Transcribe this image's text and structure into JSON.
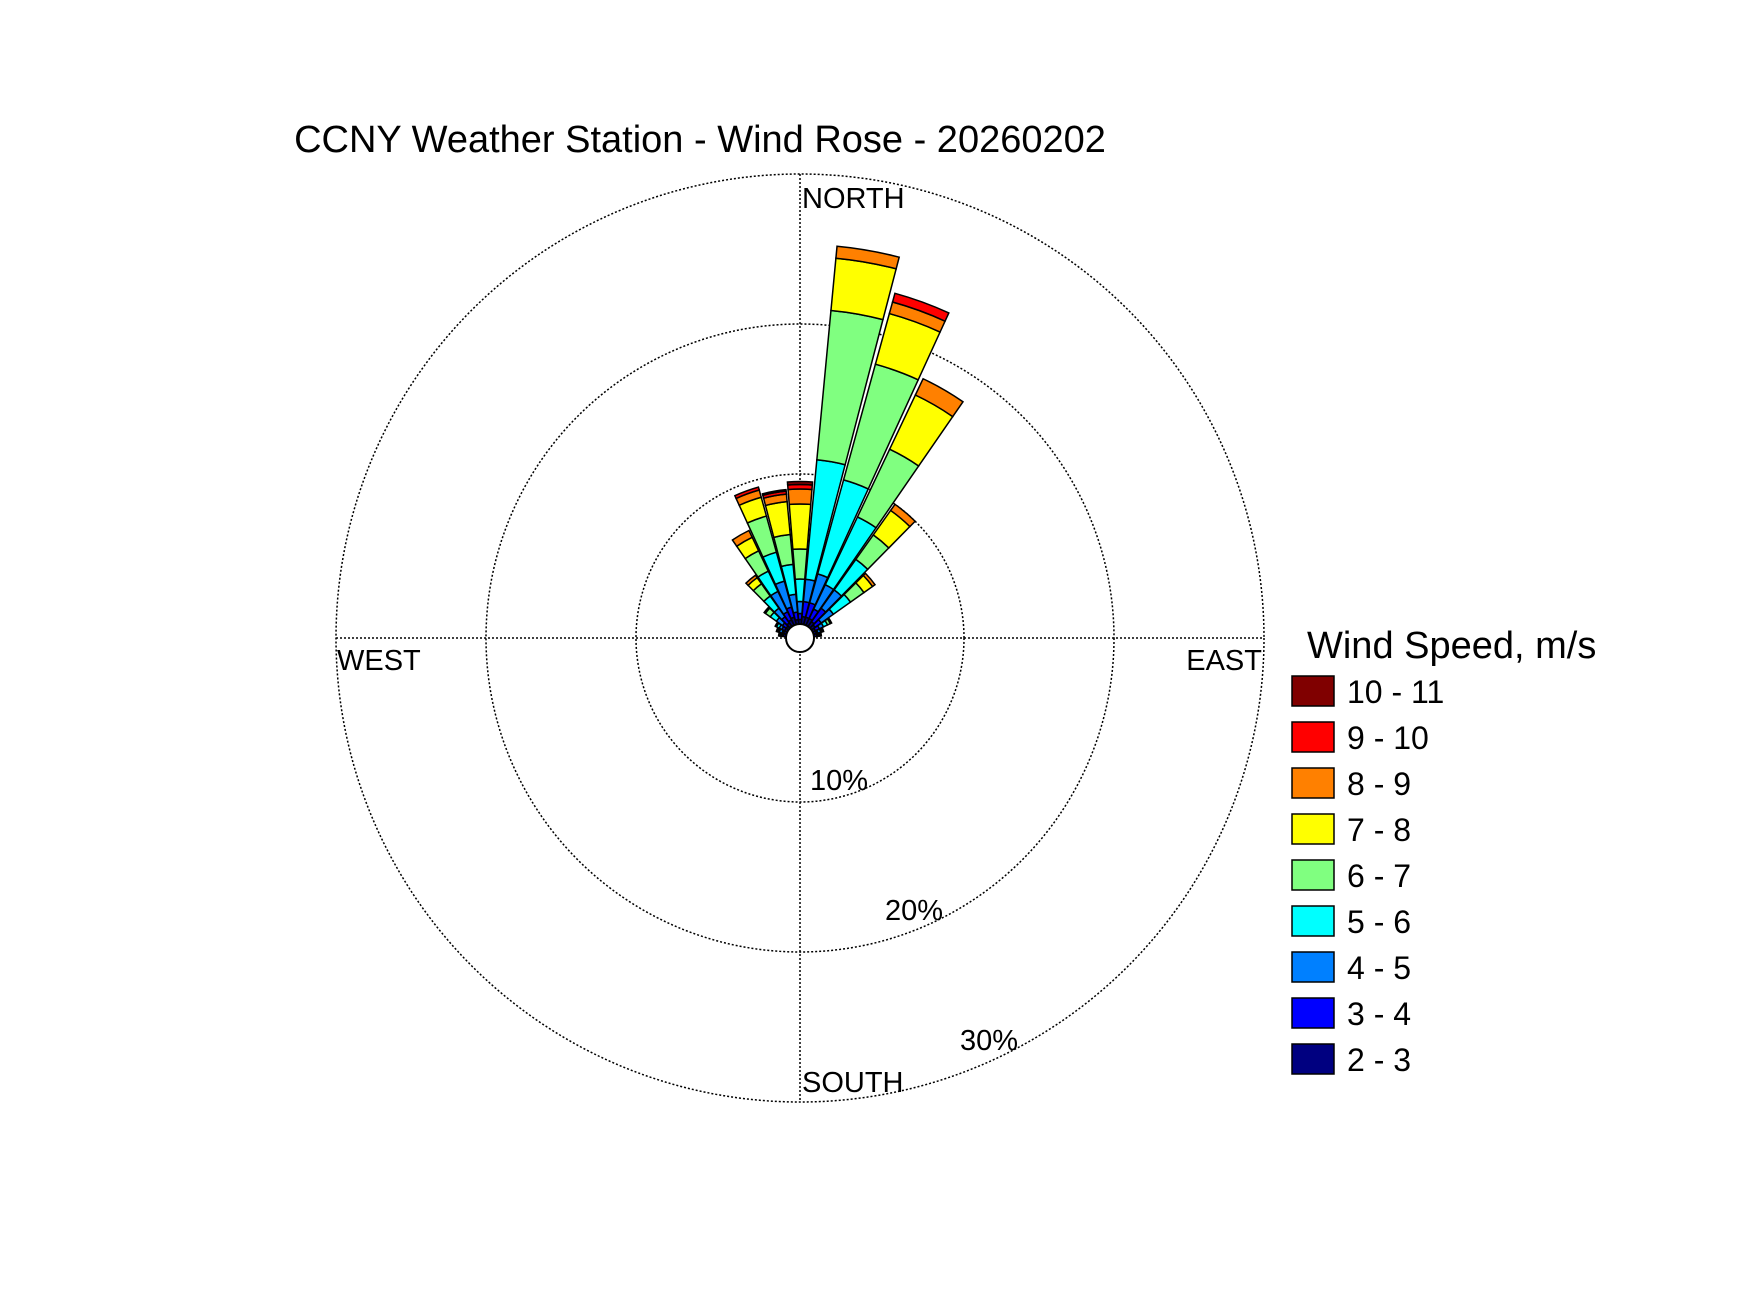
{
  "chart_data": {
    "type": "wind-rose",
    "title": "CCNY Weather Station - Wind Rose - 20260202",
    "directions": {
      "north": "NORTH",
      "east": "EAST",
      "south": "SOUTH",
      "west": "WEST"
    },
    "rings": [
      {
        "value": 10,
        "label": "10%"
      },
      {
        "value": 20,
        "label": "20%"
      },
      {
        "value": 30,
        "label": "30%"
      }
    ],
    "legend_title": "Wind Speed, m/s",
    "bins": [
      {
        "label": "2 - 3",
        "color": "#000080"
      },
      {
        "label": "3 - 4",
        "color": "#0000ff"
      },
      {
        "label": "4 - 5",
        "color": "#0080ff"
      },
      {
        "label": "5 - 6",
        "color": "#00ffff"
      },
      {
        "label": "6 - 7",
        "color": "#80ff80"
      },
      {
        "label": "7 - 8",
        "color": "#ffff00"
      },
      {
        "label": "8 - 9",
        "color": "#ff8000"
      },
      {
        "label": "9 - 10",
        "color": "#ff0000"
      },
      {
        "label": "10 - 11",
        "color": "#800000"
      }
    ],
    "sectors": [
      {
        "direction_deg": 0,
        "cumulative": [
          0.3,
          0.7,
          1.5,
          3.0,
          5.0,
          8.0,
          9.0,
          9.3,
          9.5
        ]
      },
      {
        "direction_deg": 10,
        "cumulative": [
          0.5,
          1.5,
          3.0,
          11.0,
          21.0,
          24.5,
          25.3,
          25.3,
          25.3
        ]
      },
      {
        "direction_deg": 20,
        "cumulative": [
          0.5,
          1.5,
          3.5,
          10.0,
          18.0,
          21.5,
          22.3,
          22.9,
          22.9
        ]
      },
      {
        "direction_deg": 30,
        "cumulative": [
          0.5,
          1.2,
          3.0,
          8.0,
          13.0,
          17.0,
          18.2,
          18.2,
          18.2
        ]
      },
      {
        "direction_deg": 40,
        "cumulative": [
          0.4,
          1.5,
          3.0,
          5.5,
          7.5,
          9.5,
          10.0,
          10.0,
          10.0
        ]
      },
      {
        "direction_deg": 50,
        "cumulative": [
          0.3,
          0.8,
          1.8,
          3.2,
          4.3,
          5.0,
          5.2,
          5.2,
          5.2
        ]
      },
      {
        "direction_deg": 60,
        "cumulative": [
          0.2,
          0.5,
          0.8,
          1.1,
          1.3,
          1.4,
          1.4,
          1.4,
          1.4
        ]
      },
      {
        "direction_deg": 70,
        "cumulative": [
          0.2,
          0.3,
          0.5,
          0.6,
          0.7,
          0.7,
          0.7,
          0.7,
          0.7
        ]
      },
      {
        "direction_deg": 80,
        "cumulative": [
          0.2,
          0.3,
          0.4,
          0.5,
          0.5,
          0.5,
          0.5,
          0.5,
          0.5
        ]
      },
      {
        "direction_deg": 280,
        "cumulative": [
          0.2,
          0.3,
          0.4,
          0.5,
          0.5,
          0.5,
          0.5,
          0.5,
          0.5
        ]
      },
      {
        "direction_deg": 290,
        "cumulative": [
          0.2,
          0.3,
          0.5,
          0.6,
          0.7,
          0.7,
          0.7,
          0.7,
          0.7
        ]
      },
      {
        "direction_deg": 300,
        "cumulative": [
          0.2,
          0.4,
          0.6,
          0.8,
          0.9,
          0.9,
          0.9,
          0.9,
          0.9
        ]
      },
      {
        "direction_deg": 310,
        "cumulative": [
          0.2,
          0.5,
          1.0,
          1.5,
          1.9,
          2.0,
          2.0,
          2.0,
          2.0
        ]
      },
      {
        "direction_deg": 320,
        "cumulative": [
          0.3,
          0.8,
          1.5,
          2.5,
          3.5,
          4.0,
          4.2,
          4.2,
          4.2
        ]
      },
      {
        "direction_deg": 330,
        "cumulative": [
          0.4,
          1.0,
          2.5,
          4.0,
          5.5,
          6.5,
          7.0,
          7.0,
          7.0
        ]
      },
      {
        "direction_deg": 340,
        "cumulative": [
          0.5,
          1.2,
          3.0,
          5.0,
          7.5,
          8.8,
          9.3,
          9.5,
          9.5
        ]
      },
      {
        "direction_deg": 350,
        "cumulative": [
          0.3,
          0.8,
          2.0,
          4.0,
          6.0,
          8.2,
          8.7,
          8.9,
          9.0
        ]
      }
    ]
  }
}
